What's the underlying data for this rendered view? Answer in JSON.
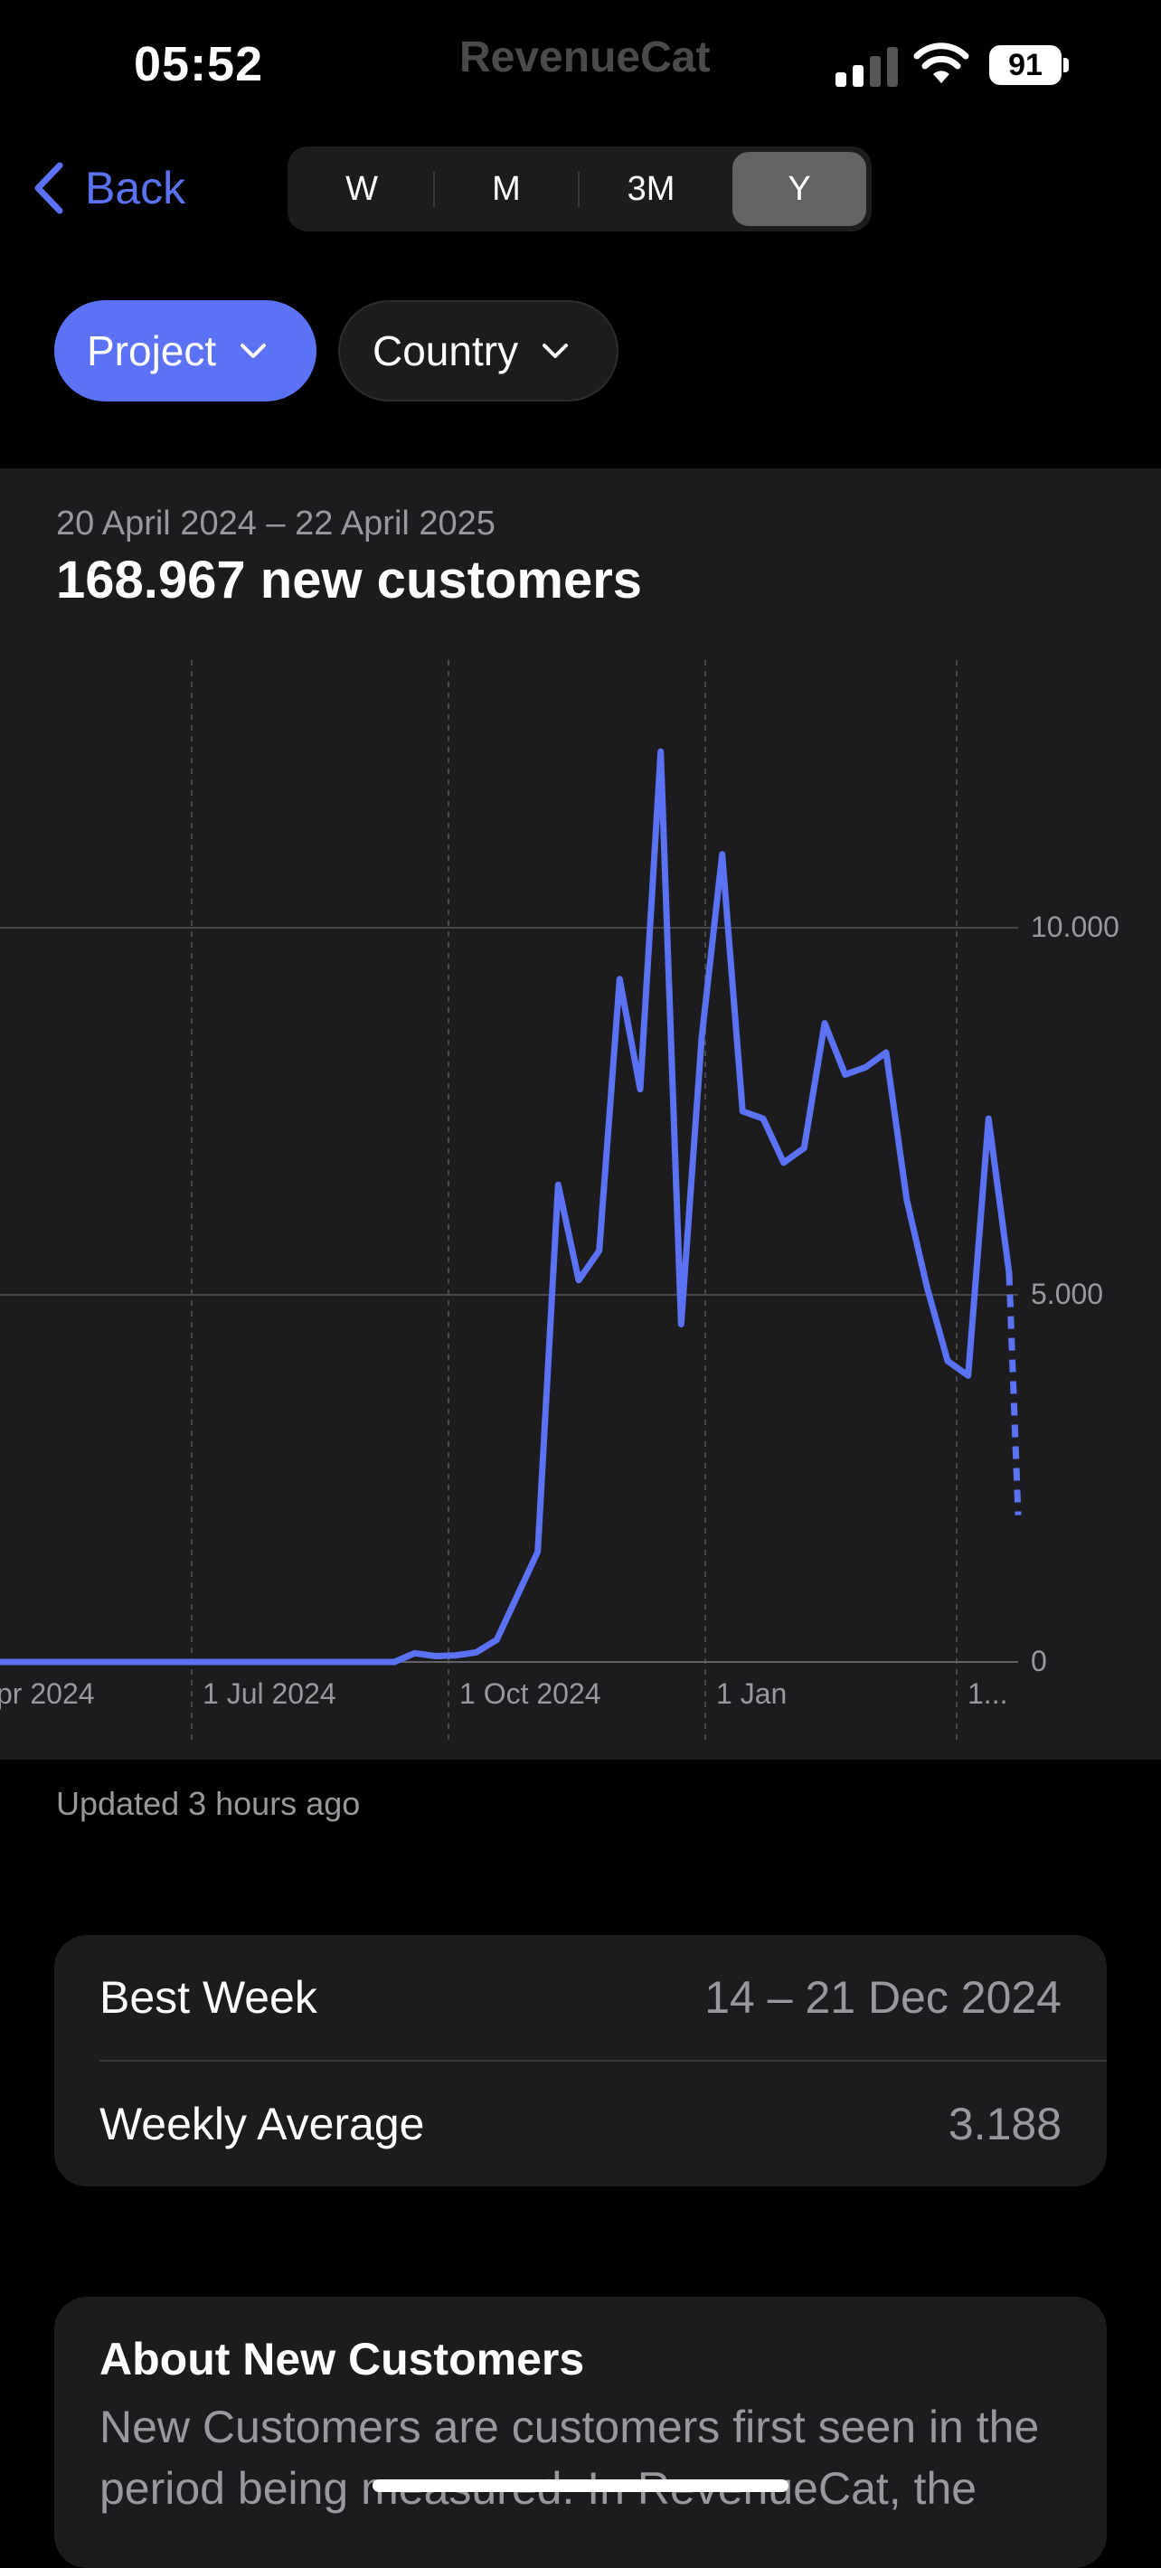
{
  "status_bar": {
    "time": "05:52",
    "app_name": "RevenueCat",
    "battery": "91"
  },
  "nav": {
    "back_label": "Back"
  },
  "period_tabs": [
    {
      "label": "W",
      "active": false
    },
    {
      "label": "M",
      "active": false
    },
    {
      "label": "3M",
      "active": false
    },
    {
      "label": "Y",
      "active": true
    }
  ],
  "filters": {
    "project_label": "Project",
    "country_label": "Country"
  },
  "chart_card": {
    "date_range": "20 April 2024 – 22 April 2025",
    "headline": "168.967 new customers"
  },
  "chart_data": {
    "type": "line",
    "x_tick_labels": [
      "pr 2024",
      "1 Jul 2024",
      "1 Oct 2024",
      "1 Jan",
      "1..."
    ],
    "y_tick_labels": [
      "10.000",
      "5.000",
      "0"
    ],
    "ylim": [
      0,
      13000
    ],
    "grid": true,
    "series_color": "#5b72f5",
    "weekly_values": [
      0,
      0,
      0,
      0,
      0,
      0,
      0,
      0,
      0,
      0,
      0,
      0,
      0,
      0,
      0,
      0,
      0,
      0,
      0,
      0,
      0,
      0,
      120,
      80,
      90,
      130,
      300,
      900,
      1500,
      6500,
      5200,
      5600,
      9300,
      7800,
      12400,
      4600,
      8500,
      11000,
      7500,
      7400,
      6800,
      7000,
      8700,
      8000,
      8100,
      8300,
      6300,
      5100,
      4100,
      3900,
      7400,
      5300
    ],
    "partial_last_value": 2000
  },
  "updated_text": "Updated 3 hours ago",
  "stats": [
    {
      "label": "Best Week",
      "value": "14 – 21 Dec 2024"
    },
    {
      "label": "Weekly Average",
      "value": "3.188"
    }
  ],
  "about": {
    "title": "About New Customers",
    "text": "New Customers are customers first seen in the period being measured. In RevenueCat, the"
  },
  "colors": {
    "accent": "#5b72f5",
    "card_bg": "#1c1c1e",
    "secondary_text": "#98989d"
  }
}
